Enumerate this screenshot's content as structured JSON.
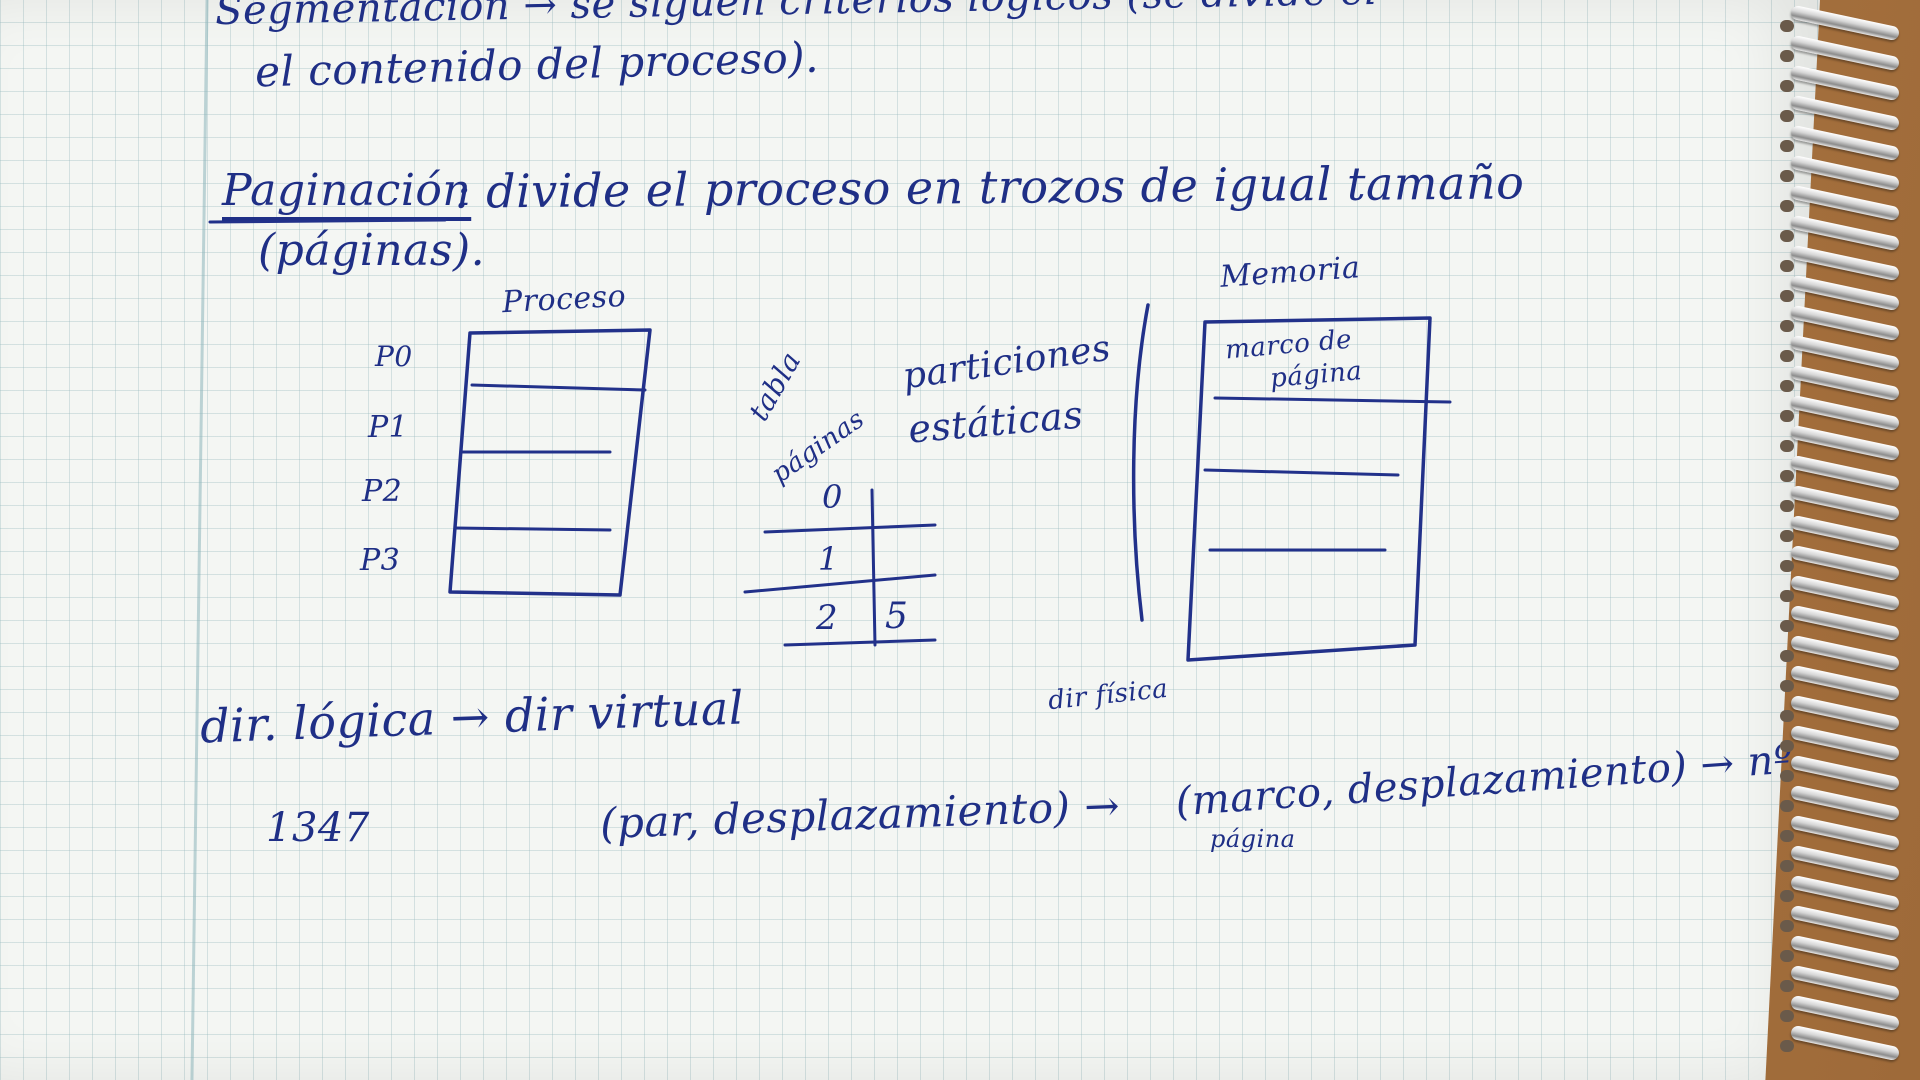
{
  "notes": {
    "line_top": "Segmentación → se siguen criterios lógicos (se divide el",
    "line_top2": "el contenido del proceso).",
    "paginacion_word": "Paginación",
    "paginacion_rest": ": divide el proceso en trozos de igual tamaño",
    "paginas": "(páginas).",
    "proceso_label": "Proceso",
    "pages": [
      "P0",
      "P1",
      "P2",
      "P3"
    ],
    "tabla_label_1": "tabla",
    "tabla_label_2": "páginas",
    "particiones_1": "particiones",
    "particiones_2": "estáticas",
    "table_rows": [
      {
        "idx": "0",
        "val": ""
      },
      {
        "idx": "1",
        "val": ""
      },
      {
        "idx": "2",
        "val": "5"
      }
    ],
    "memoria_label": "Memoria",
    "marco_1": "marco de",
    "marco_2": "página",
    "dir_logica": "dir. lógica → dir virtual",
    "dir_fisica": "dir física",
    "numero": "1347",
    "par": "(par, desplazamiento) →",
    "marco_desp": "(marco, desplazamiento) → nº",
    "pagina_small": "página"
  },
  "colors": {
    "ink": "#1f2f86",
    "paper": "#f4f6f3",
    "grid": "#96b9be",
    "desk": "#b8844e"
  }
}
